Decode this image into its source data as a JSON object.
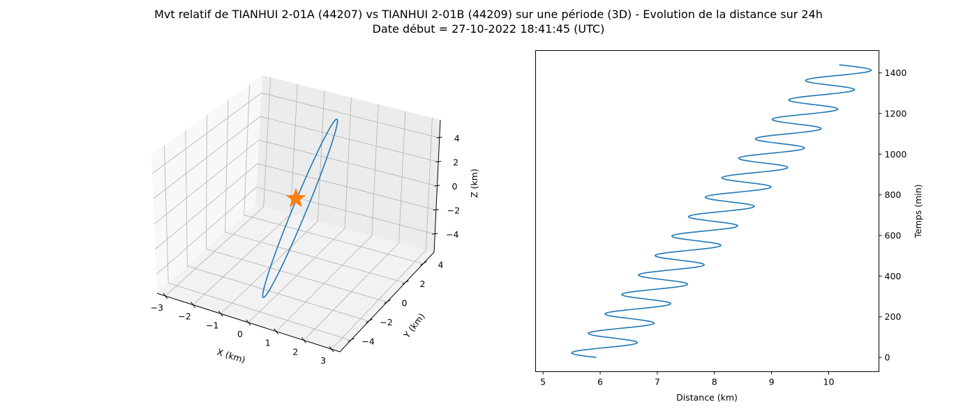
{
  "figure": {
    "title_line1": "Mvt relatif de TIANHUI 2-01A (44207) vs TIANHUI 2-01B (44209) sur une période (3D) - Evolution de la distance sur 24h",
    "title_line2": "Date début = 27-10-2022 18:41:45 (UTC)"
  },
  "chart_data": [
    {
      "type": "line3d",
      "xlabel": "X (km)",
      "ylabel": "Y (km)",
      "zlabel": "Z (km)",
      "xticks": [
        "−3",
        "−2",
        "−1",
        "0",
        "1",
        "2",
        "3"
      ],
      "yticks": [
        "−4",
        "−2",
        "0",
        "2",
        "4"
      ],
      "zticks": [
        "−4",
        "−2",
        "0",
        "2",
        "4"
      ],
      "xlim": [
        -3.3,
        3.3
      ],
      "ylim": [
        -5.2,
        5.2
      ],
      "zlim": [
        -5.5,
        5.5
      ],
      "grid": true,
      "series": [
        {
          "kind": "orbit-loop",
          "color": "#1f77b4",
          "x_amplitude": 0.8,
          "y_amplitude": 4.3,
          "z_amplitude": 5.0
        }
      ],
      "marker": {
        "symbol": "star",
        "color": "#ff7f0e",
        "x": 0,
        "y": 0,
        "z": 0
      }
    },
    {
      "type": "line",
      "xlabel": "Distance (km)",
      "ylabel": "Temps (min)",
      "xticks": [
        "5",
        "6",
        "7",
        "8",
        "9",
        "10"
      ],
      "yticks": [
        "0",
        "200",
        "400",
        "600",
        "800",
        "1000",
        "1200",
        "1400"
      ],
      "xlim": [
        4.87,
        10.88
      ],
      "ylim": [
        -70,
        1510
      ],
      "grid": false,
      "series": [
        {
          "color": "#1f77b4",
          "time_start": 0,
          "time_end": 1440,
          "distance_mean_start": 5.93,
          "distance_mean_end": 10.33,
          "oscillation_amplitude": 0.5,
          "oscillation_period_min": 95.7
        }
      ]
    }
  ]
}
